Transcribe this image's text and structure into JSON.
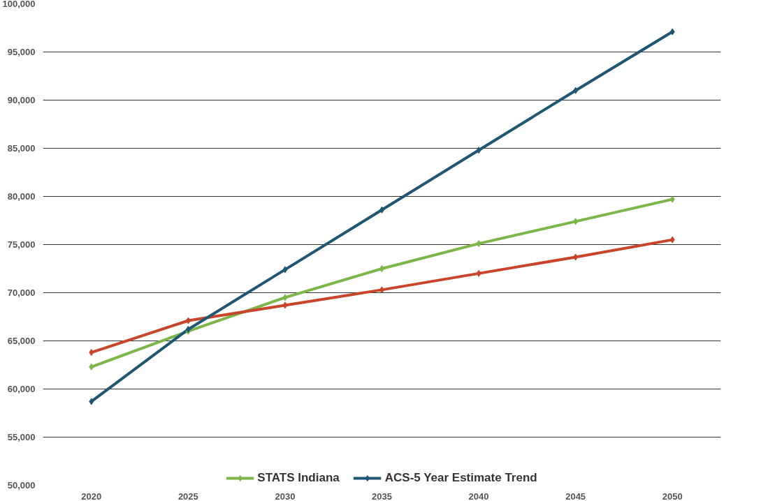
{
  "chart_data": {
    "type": "line",
    "x": [
      2020,
      2025,
      2030,
      2035,
      2040,
      2045,
      2050
    ],
    "series": [
      {
        "name": "STATS Indiana",
        "color": "#7ab648",
        "values": [
          62300,
          66000,
          69500,
          72500,
          75100,
          77400,
          79700
        ]
      },
      {
        "color": "#c8442a",
        "values": [
          63800,
          67100,
          68700,
          70300,
          72000,
          73700,
          75500
        ]
      },
      {
        "name": "ACS-5 Year Estimate Trend",
        "color": "#1f5673",
        "values": [
          58700,
          66200,
          72400,
          78600,
          84800,
          91000,
          97100
        ]
      }
    ],
    "xlim": [
      2017.5,
      2052.5
    ],
    "xticks": [
      2020,
      2025,
      2030,
      2035,
      2040,
      2045,
      2050
    ],
    "ylim": [
      50000,
      100000
    ],
    "yticks": [
      {
        "value": 50000,
        "label": "50,000"
      },
      {
        "value": 55000,
        "label": "55,000"
      },
      {
        "value": 60000,
        "label": "60,000"
      },
      {
        "value": 65000,
        "label": "65,000"
      },
      {
        "value": 70000,
        "label": "70,000"
      },
      {
        "value": 75000,
        "label": "75,000"
      },
      {
        "value": 80000,
        "label": "80,000"
      },
      {
        "value": 85000,
        "label": "85,000"
      },
      {
        "value": 90000,
        "label": "90,000"
      },
      {
        "value": 95000,
        "label": "95,000"
      },
      {
        "value": 100000,
        "label": "100,000"
      }
    ],
    "grid": "y",
    "legend": "bottom",
    "marker": "diamond",
    "line_style": "solid"
  }
}
